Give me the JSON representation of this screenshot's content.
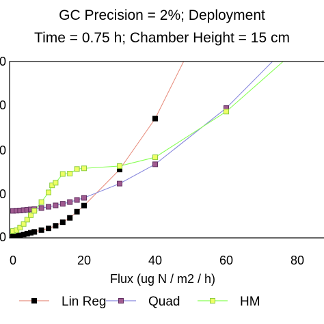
{
  "chart_data": {
    "type": "line",
    "title_line1": "GC Precision = 2%; Deployment",
    "title_line2": "Time = 0.75 h; Chamber Height = 15 cm",
    "xlabel": "Flux (ug N / m2 / h)",
    "ylabel": "",
    "xlim": [
      0,
      90
    ],
    "ylim": [
      0,
      100
    ],
    "x_ticks": [
      "0",
      "20",
      "40",
      "60",
      "80"
    ],
    "y_ticks": [
      "0",
      "0",
      "0",
      "0",
      "0"
    ],
    "grid": false,
    "legend_position": "bottom",
    "series": [
      {
        "name": "Lin Reg",
        "line_color": "#e89080",
        "marker_fill": "#000000",
        "marker_stroke": "#000000",
        "markers": [
          {
            "x": 0,
            "y": 0.5
          },
          {
            "x": 1,
            "y": 0.7
          },
          {
            "x": 2,
            "y": 1.0
          },
          {
            "x": 3,
            "y": 1.5
          },
          {
            "x": 4,
            "y": 2.0
          },
          {
            "x": 5,
            "y": 2.5
          },
          {
            "x": 6,
            "y": 3.0
          },
          {
            "x": 8,
            "y": 4.0
          },
          {
            "x": 10,
            "y": 5.0
          },
          {
            "x": 12,
            "y": 6.5
          },
          {
            "x": 14,
            "y": 8.5
          },
          {
            "x": 16,
            "y": 11.0
          },
          {
            "x": 18,
            "y": 14.5
          },
          {
            "x": 20,
            "y": 18.0
          },
          {
            "x": 30,
            "y": 38.5
          },
          {
            "x": 40,
            "y": 67.5
          }
        ],
        "line_extends_to": {
          "x": 48,
          "y": 100
        }
      },
      {
        "name": "Quad",
        "line_color": "#8888dd",
        "marker_fill": "#a05a90",
        "marker_stroke": "#603060",
        "markers": [
          {
            "x": 0,
            "y": 15.0
          },
          {
            "x": 1,
            "y": 15.1
          },
          {
            "x": 2,
            "y": 15.2
          },
          {
            "x": 3,
            "y": 15.4
          },
          {
            "x": 4,
            "y": 15.6
          },
          {
            "x": 5,
            "y": 15.8
          },
          {
            "x": 6,
            "y": 16.0
          },
          {
            "x": 8,
            "y": 16.6
          },
          {
            "x": 10,
            "y": 17.3
          },
          {
            "x": 12,
            "y": 18.1
          },
          {
            "x": 14,
            "y": 19.0
          },
          {
            "x": 16,
            "y": 20.0
          },
          {
            "x": 18,
            "y": 21.2
          },
          {
            "x": 20,
            "y": 22.4
          },
          {
            "x": 30,
            "y": 30.5
          },
          {
            "x": 40,
            "y": 41.5
          },
          {
            "x": 60,
            "y": 73.5
          }
        ],
        "line_extends_to": {
          "x": 73,
          "y": 100
        }
      },
      {
        "name": "HM",
        "line_color": "#88ff55",
        "marker_fill": "#eeff66",
        "marker_stroke": "#8ccc40",
        "markers": [
          {
            "x": 0,
            "y": 3.5
          },
          {
            "x": 1,
            "y": 4.0
          },
          {
            "x": 2,
            "y": 5.5
          },
          {
            "x": 3,
            "y": 7.5
          },
          {
            "x": 4,
            "y": 10.0
          },
          {
            "x": 5,
            "y": 12.5
          },
          {
            "x": 6,
            "y": 15.0
          },
          {
            "x": 8,
            "y": 20.0
          },
          {
            "x": 10,
            "y": 25.5
          },
          {
            "x": 11,
            "y": 29.5
          },
          {
            "x": 12,
            "y": 31.0
          },
          {
            "x": 14,
            "y": 36.0
          },
          {
            "x": 16,
            "y": 36.2
          },
          {
            "x": 18,
            "y": 38.8
          },
          {
            "x": 20,
            "y": 39.2
          },
          {
            "x": 30,
            "y": 40.5
          },
          {
            "x": 40,
            "y": 45.5
          },
          {
            "x": 60,
            "y": 71.5
          }
        ],
        "line_extends_to": {
          "x": 76,
          "y": 100
        }
      }
    ]
  }
}
